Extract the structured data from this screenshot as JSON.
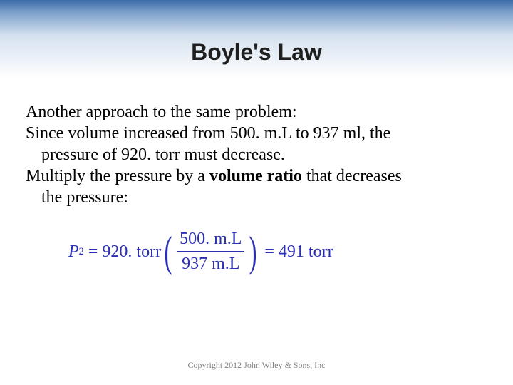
{
  "slide": {
    "title": "Boyle's Law",
    "title_fontsize": 32,
    "title_color": "#1f1f1f",
    "header_gradient": [
      "#3a6aa8",
      "#7a9ec9",
      "#d5e1ef",
      "#ffffff"
    ],
    "body_fontsize": 24,
    "body_color": "#000000",
    "lines": {
      "l1": "Another  approach to the same problem:",
      "l2": "Since volume increased from 500. m.L to 937 ml, the",
      "l3": "pressure of 920. torr must decrease.",
      "l4a": "Multiply the pressure by a ",
      "l4b": "volume ratio",
      "l4c": " that decreases",
      "l5": "the pressure:"
    },
    "equation": {
      "lhs_var": "P",
      "lhs_sub": "2",
      "coeff": "920. torr",
      "frac_num": "500. m.L",
      "frac_den": "937 m.L",
      "rhs": "491 torr",
      "color": "#2a2fb5",
      "fontsize": 24
    },
    "copyright": "Copyright 2012 John Wiley & Sons, Inc",
    "copyright_fontsize": 12,
    "copyright_color": "#808080"
  }
}
